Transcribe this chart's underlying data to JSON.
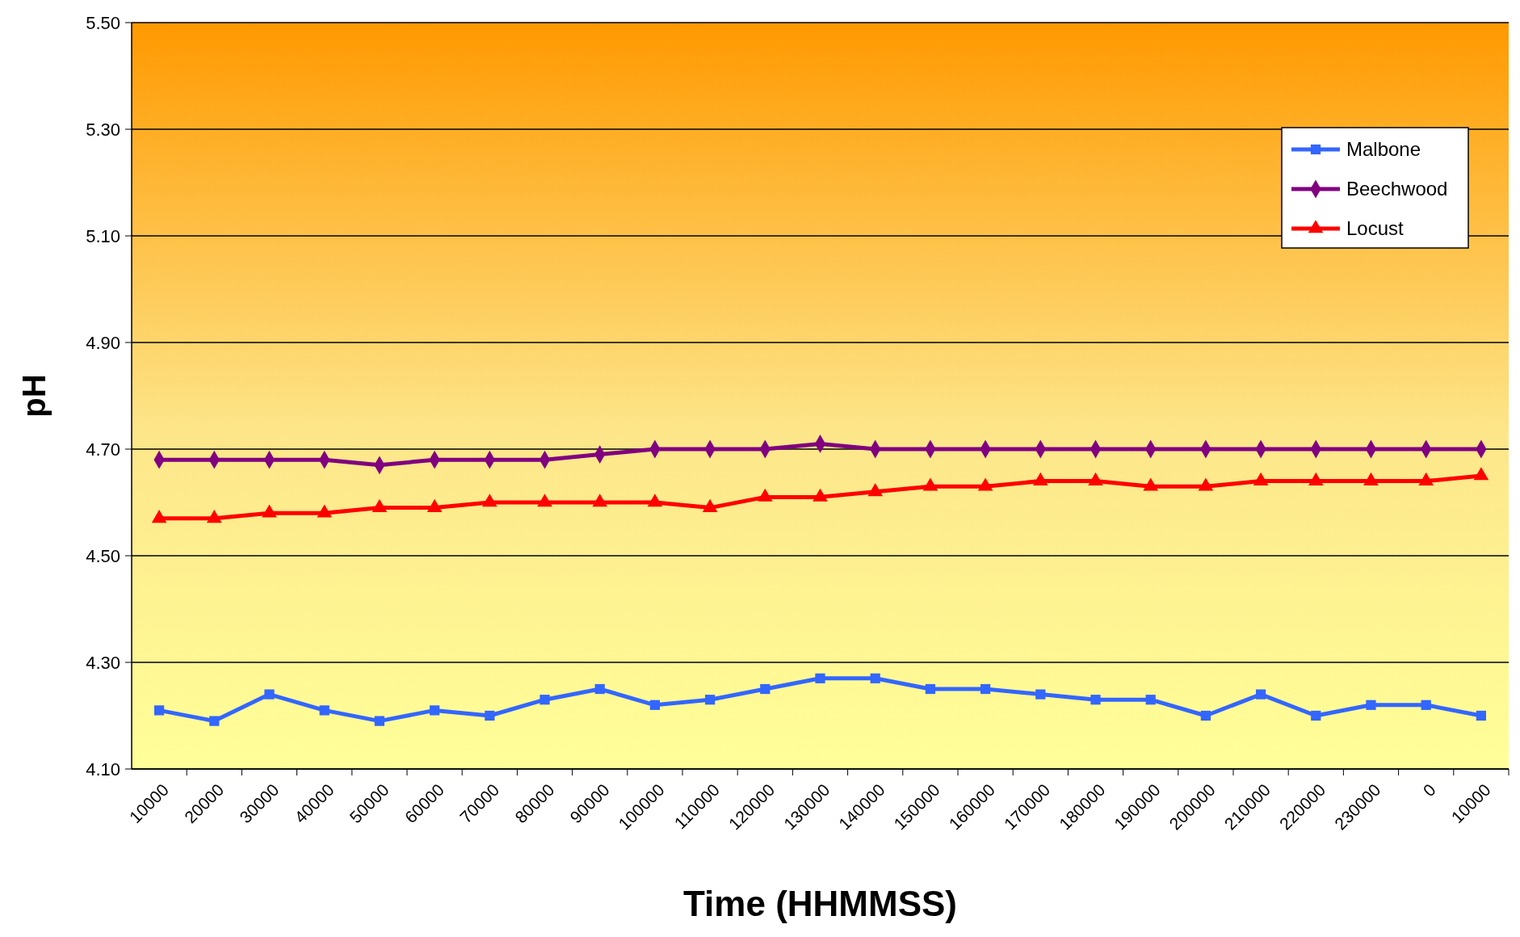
{
  "chart_data": {
    "type": "line",
    "xlabel": "Time (HHMMSS)",
    "ylabel": "pH",
    "categories": [
      "10000",
      "20000",
      "30000",
      "40000",
      "50000",
      "60000",
      "70000",
      "80000",
      "90000",
      "100000",
      "110000",
      "120000",
      "130000",
      "140000",
      "150000",
      "160000",
      "170000",
      "180000",
      "190000",
      "200000",
      "210000",
      "220000",
      "230000",
      "0",
      "10000"
    ],
    "series": [
      {
        "name": "Malbone",
        "color": "#3366ff",
        "marker": "square",
        "values": [
          4.21,
          4.19,
          4.24,
          4.21,
          4.19,
          4.21,
          4.2,
          4.23,
          4.25,
          4.22,
          4.23,
          4.25,
          4.27,
          4.27,
          4.25,
          4.25,
          4.24,
          4.23,
          4.23,
          4.2,
          4.24,
          4.2,
          4.22,
          4.22,
          4.2
        ]
      },
      {
        "name": "Beechwood",
        "color": "#800080",
        "marker": "diamond",
        "values": [
          4.68,
          4.68,
          4.68,
          4.68,
          4.67,
          4.68,
          4.68,
          4.68,
          4.69,
          4.7,
          4.7,
          4.7,
          4.71,
          4.7,
          4.7,
          4.7,
          4.7,
          4.7,
          4.7,
          4.7,
          4.7,
          4.7,
          4.7,
          4.7,
          4.7
        ]
      },
      {
        "name": "Locust",
        "color": "#ff0000",
        "marker": "triangle",
        "values": [
          4.57,
          4.57,
          4.58,
          4.58,
          4.59,
          4.59,
          4.6,
          4.6,
          4.6,
          4.6,
          4.59,
          4.61,
          4.61,
          4.62,
          4.63,
          4.63,
          4.64,
          4.64,
          4.63,
          4.63,
          4.64,
          4.64,
          4.64,
          4.64,
          4.65
        ]
      }
    ],
    "ylim": [
      4.1,
      5.5
    ],
    "yticks": [
      {
        "value": 4.1,
        "label": "4.10"
      },
      {
        "value": 4.3,
        "label": "4.30"
      },
      {
        "value": 4.5,
        "label": "4.50"
      },
      {
        "value": 4.7,
        "label": "4.70"
      },
      {
        "value": 4.9,
        "label": "4.90"
      },
      {
        "value": 5.1,
        "label": "5.10"
      },
      {
        "value": 5.3,
        "label": "5.30"
      },
      {
        "value": 5.5,
        "label": "5.50"
      }
    ],
    "grid": "y",
    "legend": "top right"
  }
}
